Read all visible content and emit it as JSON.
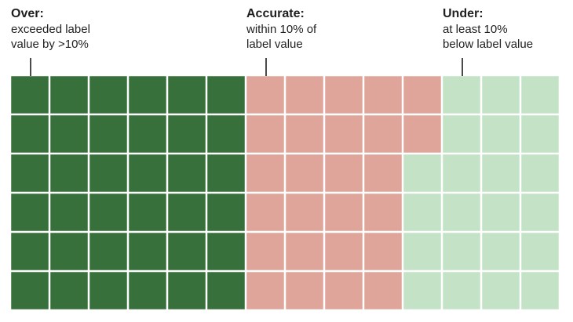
{
  "annotations": {
    "over": {
      "title": "Over:",
      "description": "exceeded label\nvalue by >10%"
    },
    "accurate": {
      "title": "Accurate:",
      "description": "within 10% of\nlabel value"
    },
    "under": {
      "title": "Under:",
      "description": "at least 10%\nbelow label value"
    }
  },
  "chart_data": {
    "type": "waffle",
    "rows": 6,
    "columns": 14,
    "fill_order": "column-major, left to right, top to bottom",
    "categories": [
      {
        "name": "Over",
        "count": 36,
        "color": "#37703a"
      },
      {
        "name": "Accurate",
        "count": 26,
        "color": "#e0a59a"
      },
      {
        "name": "Under",
        "count": 22,
        "color": "#c4e2c6"
      }
    ],
    "background": "#ffffff"
  }
}
